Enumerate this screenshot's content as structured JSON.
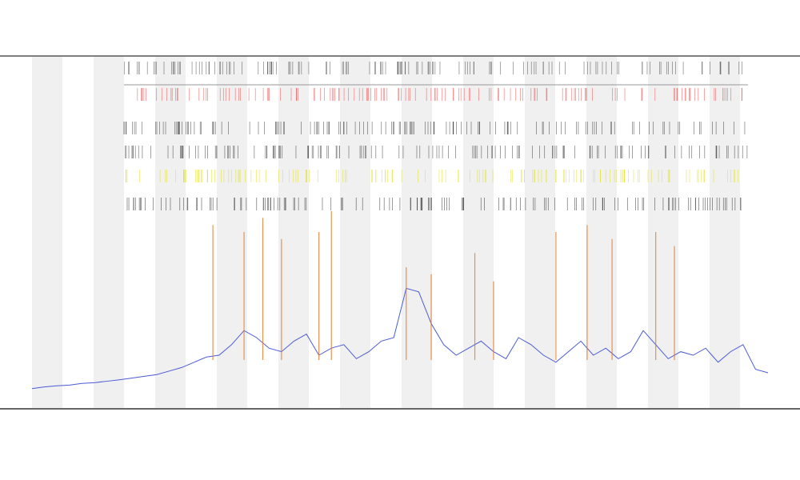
{
  "chart_data": {
    "type": "line",
    "x": [
      0,
      1,
      2,
      3,
      4,
      5,
      6,
      7,
      8,
      9,
      10,
      11,
      12,
      13,
      14,
      15,
      16,
      17,
      18,
      19,
      20,
      21,
      22,
      23,
      24,
      25,
      26,
      27,
      28,
      29,
      30,
      31,
      32,
      33,
      34,
      35,
      36,
      37,
      38,
      39,
      40,
      41,
      42,
      43,
      44,
      45,
      46,
      47,
      48,
      49,
      50,
      51,
      52,
      53,
      54,
      55,
      56,
      57,
      58,
      59
    ],
    "xlim": [
      0,
      59
    ],
    "ylim": [
      0,
      100
    ],
    "series": [
      {
        "color": "#4b5bd6",
        "values": [
          5.5,
          6,
          6.3,
          6.5,
          7,
          7.2,
          7.6,
          8,
          8.5,
          9,
          9.5,
          10.5,
          11.5,
          13,
          14.5,
          15,
          18,
          22,
          20,
          17,
          16,
          19,
          21,
          15,
          17,
          18,
          14,
          16,
          19,
          20,
          34,
          33,
          24,
          18,
          15,
          17,
          19,
          16,
          14,
          20,
          18,
          15,
          13,
          16,
          19,
          15,
          17,
          14,
          16,
          22,
          18,
          14,
          16,
          15,
          17,
          13,
          16,
          18,
          11,
          10
        ]
      }
    ],
    "spikes": {
      "color": "#e07a2a",
      "x": [
        14.5,
        17,
        18.5,
        20,
        23,
        24,
        30,
        32,
        35.5,
        37,
        42,
        44.5,
        46.5,
        50,
        51.5
      ],
      "values": [
        52,
        50,
        54,
        48,
        50,
        56,
        40,
        38,
        44,
        36,
        50,
        52,
        48,
        50,
        46
      ]
    }
  }
}
